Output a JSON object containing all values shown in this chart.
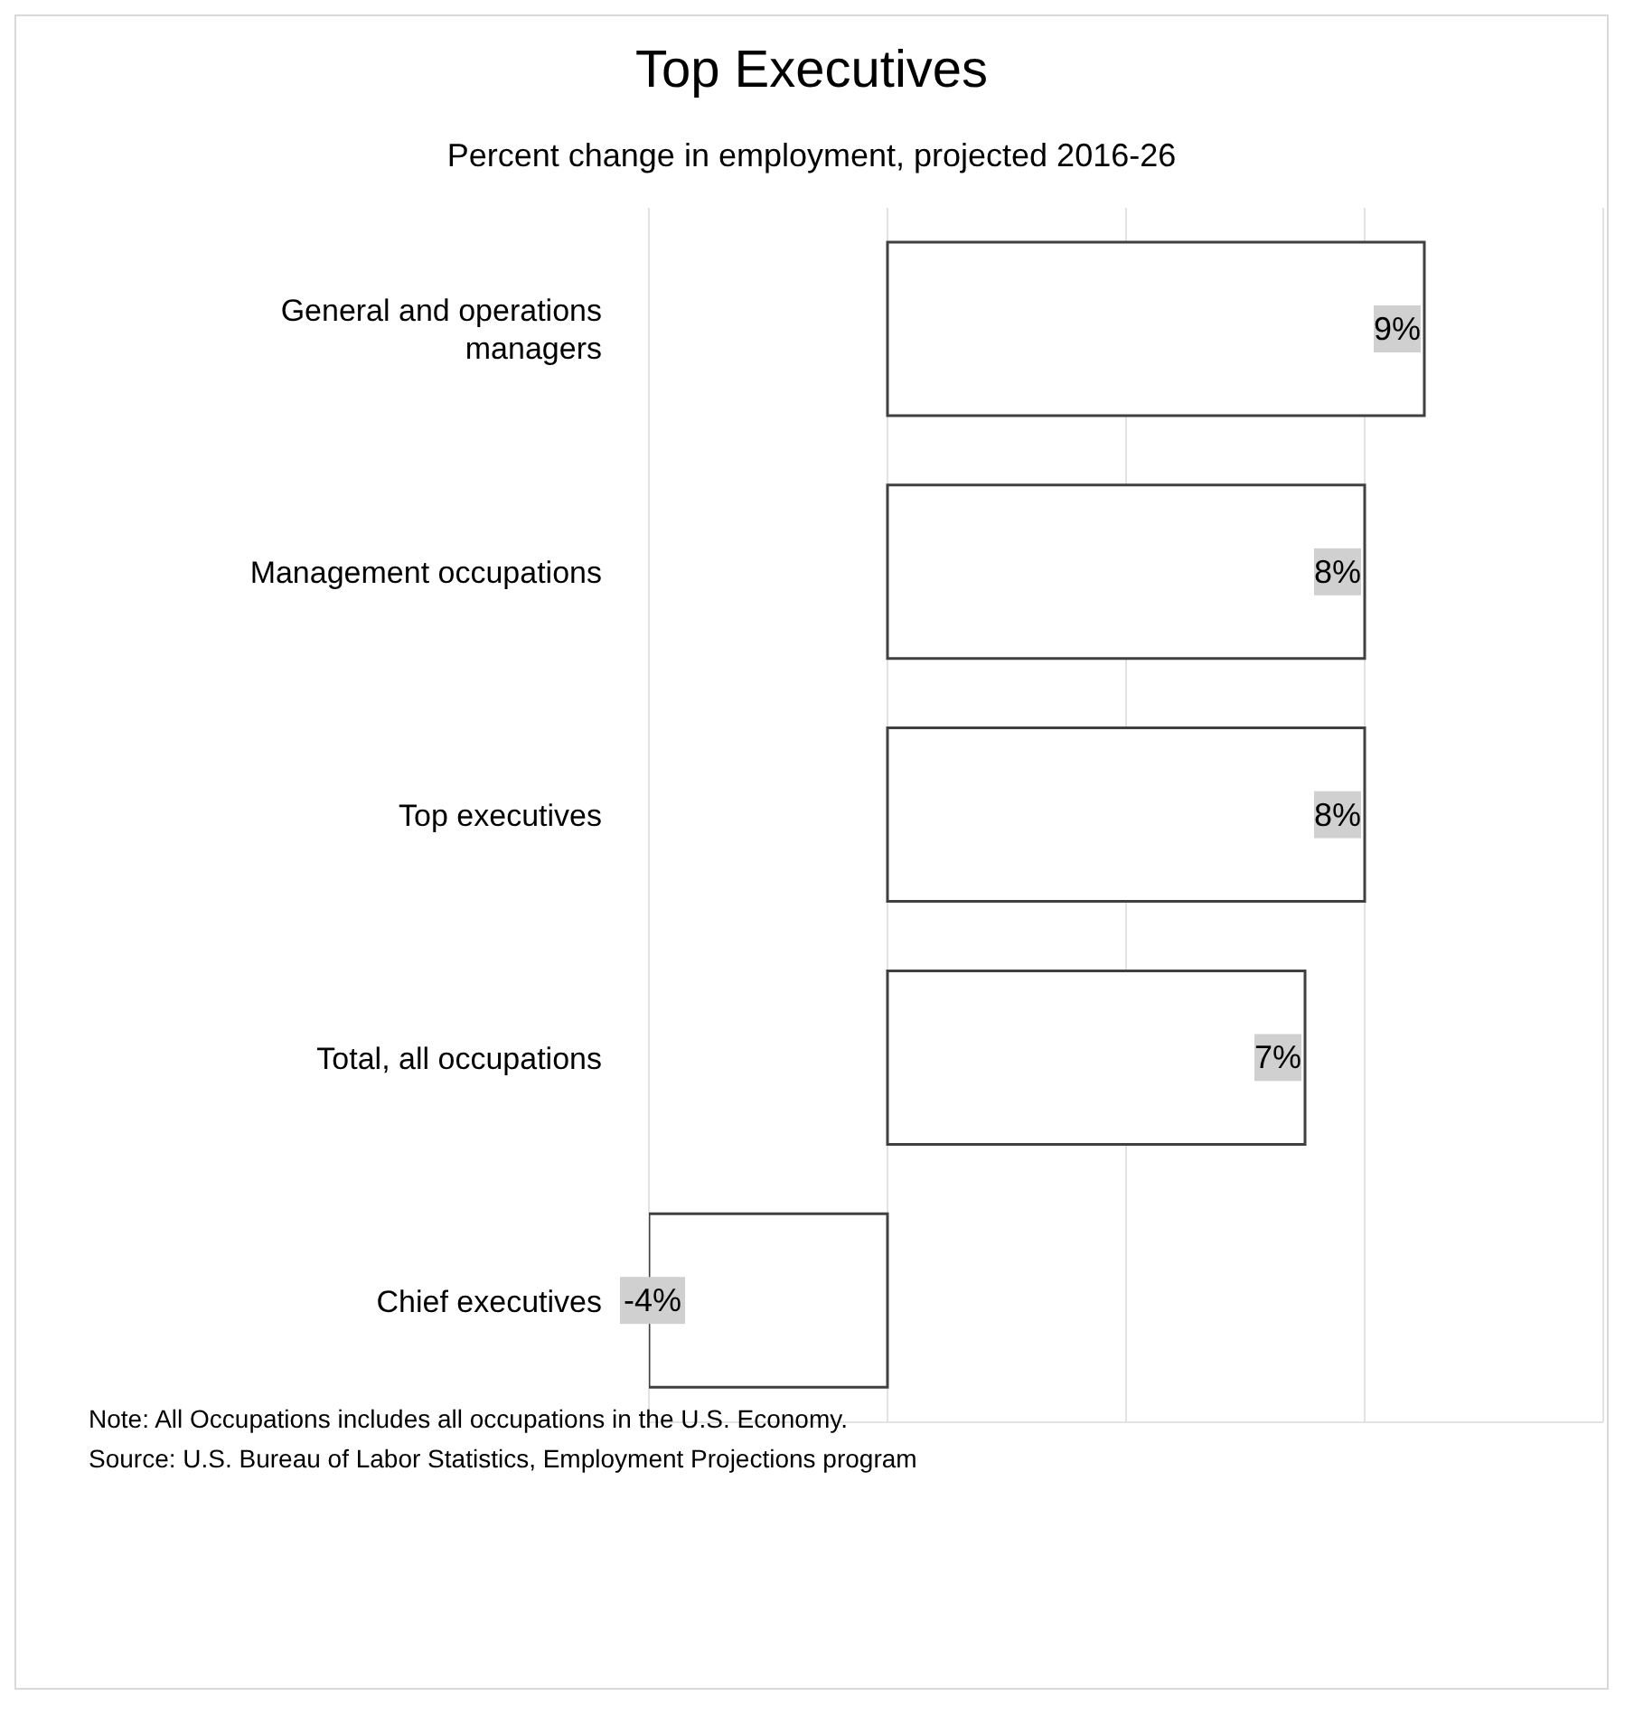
{
  "chart_data": {
    "type": "bar",
    "orientation": "horizontal",
    "title": "Top Executives",
    "subtitle": "Percent change in employment, projected 2016-26",
    "categories": [
      "General and operations managers",
      "Management occupations",
      "Top executives",
      "Total, all occupations",
      "Chief executives"
    ],
    "values": [
      9,
      8,
      8,
      7,
      -4
    ],
    "color": "#ffffff",
    "value_labels": [
      "9%",
      "8%",
      "8%",
      "7%",
      "-4%"
    ],
    "grid": "x",
    "tick_labels": "y",
    "annotations": [
      "Note: All Occupations includes all occupations in the U.S. Economy.",
      "Source: U.S. Bureau of Labor Statistics, Employment Projections program"
    ]
  }
}
